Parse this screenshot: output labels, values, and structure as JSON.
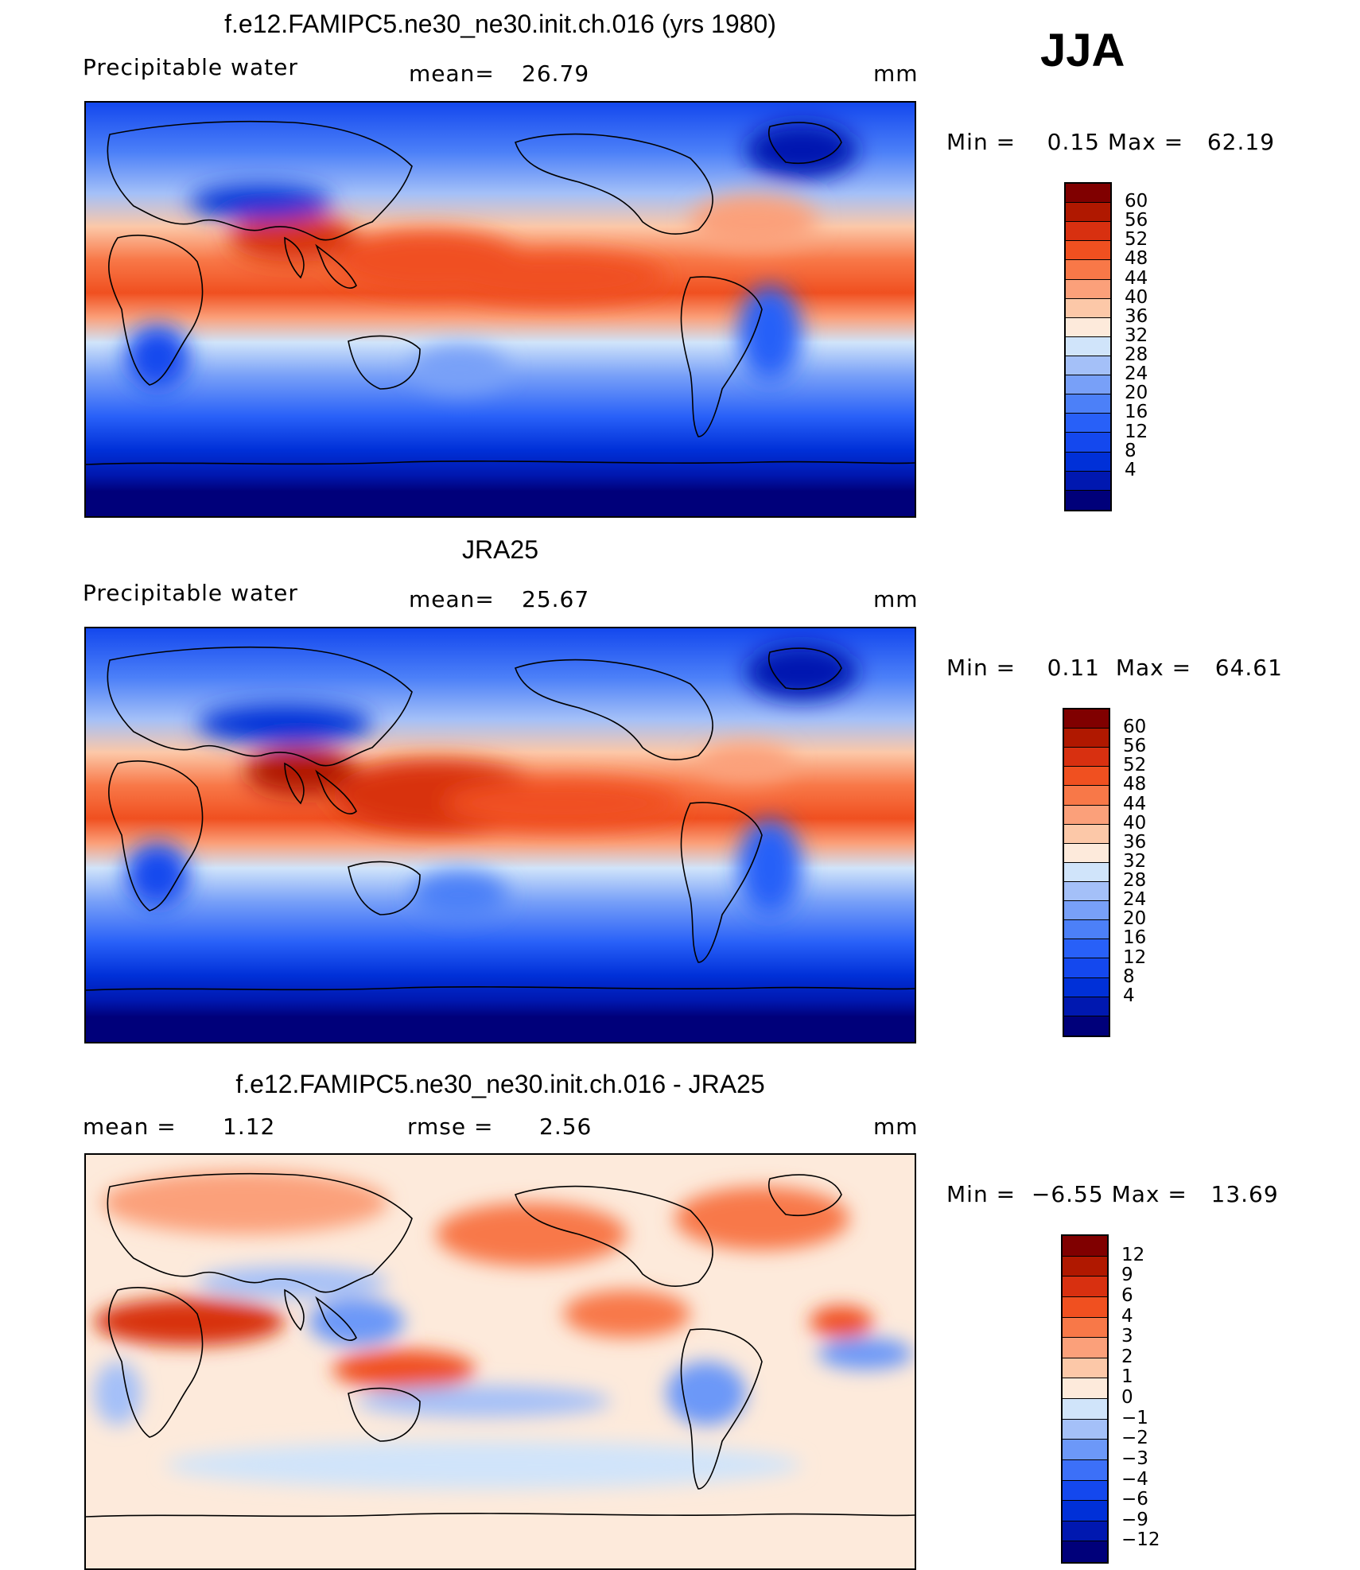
{
  "season": "JJA",
  "colors": {
    "pw": [
      "#00007a",
      "#0018b0",
      "#0030d8",
      "#1448ee",
      "#2860f8",
      "#4c80f8",
      "#78a0f8",
      "#a4c0f8",
      "#d0e4fa",
      "#fdeadb",
      "#fcc8a8",
      "#fba07a",
      "#f87848",
      "#f05020",
      "#d83010",
      "#b01800",
      "#800000"
    ],
    "diff": [
      "#00007a",
      "#0018b0",
      "#0030d8",
      "#1448ee",
      "#3c70f8",
      "#6c98f8",
      "#a4c0f8",
      "#d0e4fa",
      "#fdeadb",
      "#fcc8a8",
      "#fba07a",
      "#f87848",
      "#f05020",
      "#d83010",
      "#b01800",
      "#800000"
    ]
  },
  "chart_data": [
    {
      "type": "heatmap",
      "title": "f.e12.FAMIPC5.ne30_ne30.init.ch.016 (yrs 1980)",
      "variable": "Precipitable water",
      "stat_label": "mean=",
      "stat_value": "26.79",
      "units": "mm",
      "min_label": "Min =",
      "min": "0.15",
      "max_label": "Max =",
      "max": "62.19",
      "colorbar_levels": [
        "60",
        "56",
        "52",
        "48",
        "44",
        "40",
        "36",
        "32",
        "28",
        "24",
        "20",
        "16",
        "12",
        "8",
        "4"
      ]
    },
    {
      "type": "heatmap",
      "title": "JRA25",
      "variable": "Precipitable water",
      "stat_label": "mean=",
      "stat_value": "25.67",
      "units": "mm",
      "min_label": "Min =",
      "min": "0.11",
      "max_label": "Max =",
      "max": "64.61",
      "colorbar_levels": [
        "60",
        "56",
        "52",
        "48",
        "44",
        "40",
        "36",
        "32",
        "28",
        "24",
        "20",
        "16",
        "12",
        "8",
        "4"
      ]
    },
    {
      "type": "heatmap",
      "title": "f.e12.FAMIPC5.ne30_ne30.init.ch.016 - JRA25",
      "stat1_label": "mean =",
      "stat1_value": "1.12",
      "stat2_label": "rmse =",
      "stat2_value": "2.56",
      "units": "mm",
      "min_label": "Min =",
      "min": "−6.55",
      "max_label": "Max =",
      "max": "13.69",
      "colorbar_levels": [
        "12",
        "9",
        "6",
        "4",
        "3",
        "2",
        "1",
        "0",
        "−1",
        "−2",
        "−3",
        "−4",
        "−6",
        "−9",
        "−12"
      ]
    }
  ]
}
